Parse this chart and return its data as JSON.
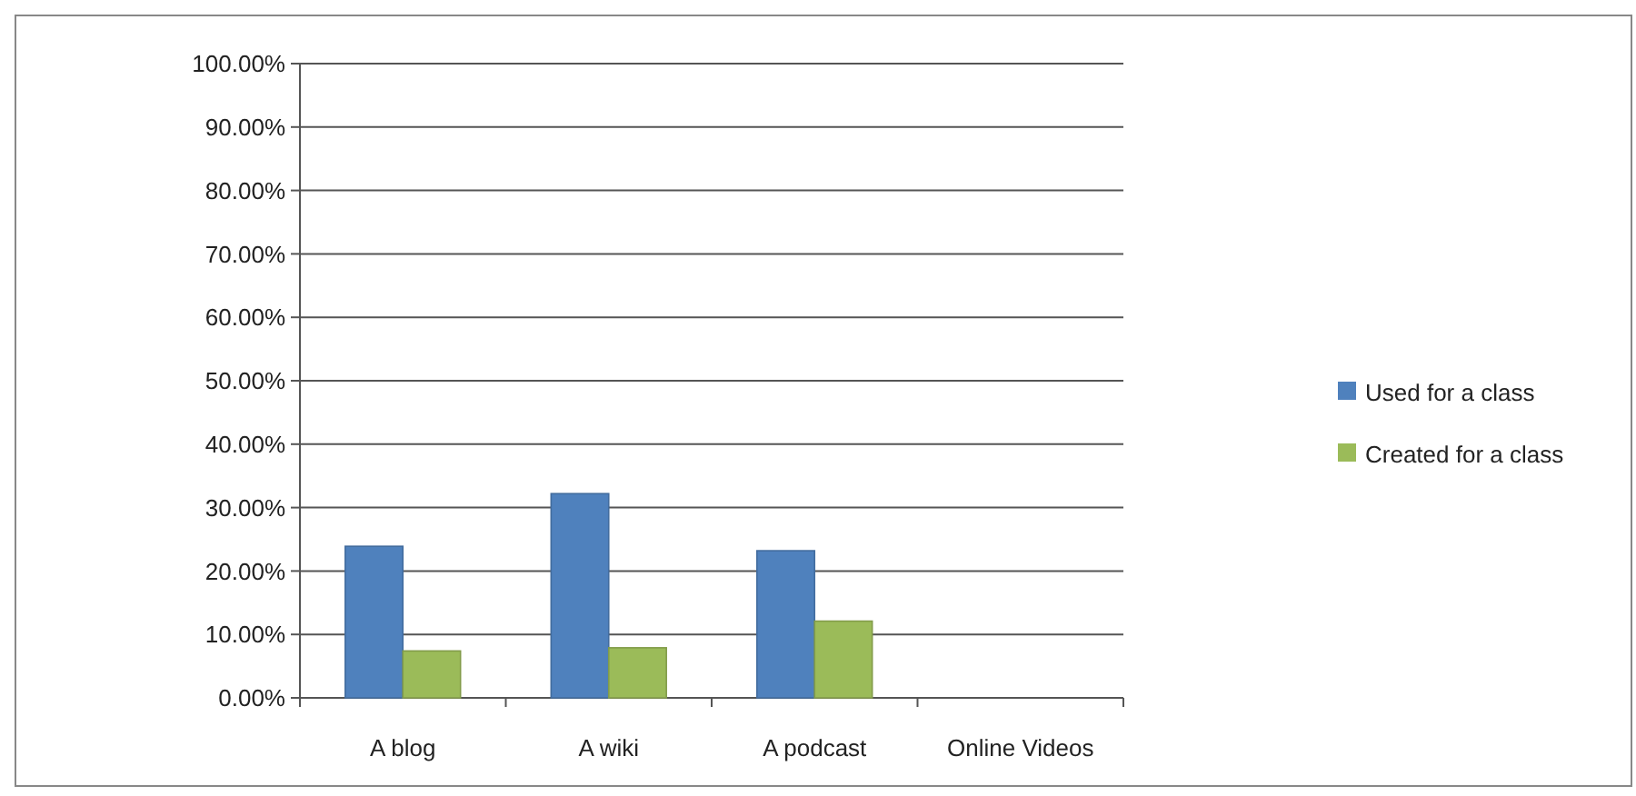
{
  "chart_data": {
    "type": "bar",
    "categories": [
      "A blog",
      "A wiki",
      "A podcast",
      "Online Videos"
    ],
    "series": [
      {
        "name": "Used for a class",
        "color": "#4f81bd",
        "values": [
          23.9,
          32.2,
          23.2,
          0
        ]
      },
      {
        "name": "Created for a class",
        "color": "#9bbb59",
        "values": [
          7.4,
          7.9,
          12.1,
          0
        ]
      }
    ],
    "ylim": [
      0,
      100
    ],
    "yticks": [
      {
        "value": 0,
        "label": "0.00%"
      },
      {
        "value": 10,
        "label": "10.00%"
      },
      {
        "value": 20,
        "label": "20.00%"
      },
      {
        "value": 30,
        "label": "30.00%"
      },
      {
        "value": 40,
        "label": "40.00%"
      },
      {
        "value": 50,
        "label": "50.00%"
      },
      {
        "value": 60,
        "label": "60.00%"
      },
      {
        "value": 70,
        "label": "70.00%"
      },
      {
        "value": 80,
        "label": "80.00%"
      },
      {
        "value": 90,
        "label": "90.00%"
      },
      {
        "value": 100,
        "label": "100.00%"
      }
    ],
    "grid": "y",
    "legend": "right"
  }
}
